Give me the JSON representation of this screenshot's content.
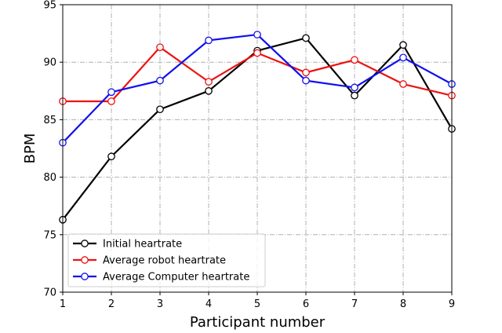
{
  "chart_data": {
    "type": "line",
    "title": "",
    "xlabel": "Participant number",
    "ylabel": "BPM",
    "x": [
      1,
      2,
      3,
      4,
      5,
      6,
      7,
      8,
      9
    ],
    "xlim": [
      1,
      9
    ],
    "ylim": [
      70,
      95
    ],
    "xticks": [
      "1",
      "2",
      "3",
      "4",
      "5",
      "6",
      "7",
      "8",
      "9"
    ],
    "yticks": [
      "70",
      "75",
      "80",
      "85",
      "90",
      "95"
    ],
    "grid": true,
    "legend_position": "bottom-left",
    "series": [
      {
        "name": "Initial heartrate",
        "color": "#000000",
        "values": [
          76.3,
          81.8,
          85.9,
          87.5,
          91.0,
          92.1,
          87.1,
          91.5,
          84.2
        ]
      },
      {
        "name": "Average robot heartrate",
        "color": "#ee1111",
        "values": [
          86.6,
          86.6,
          91.3,
          88.3,
          90.8,
          89.1,
          90.2,
          88.1,
          87.1
        ]
      },
      {
        "name": "Average Computer heartrate",
        "color": "#1111ee",
        "values": [
          83.0,
          87.4,
          88.4,
          91.9,
          92.4,
          88.4,
          87.8,
          90.4,
          88.1
        ]
      }
    ]
  }
}
